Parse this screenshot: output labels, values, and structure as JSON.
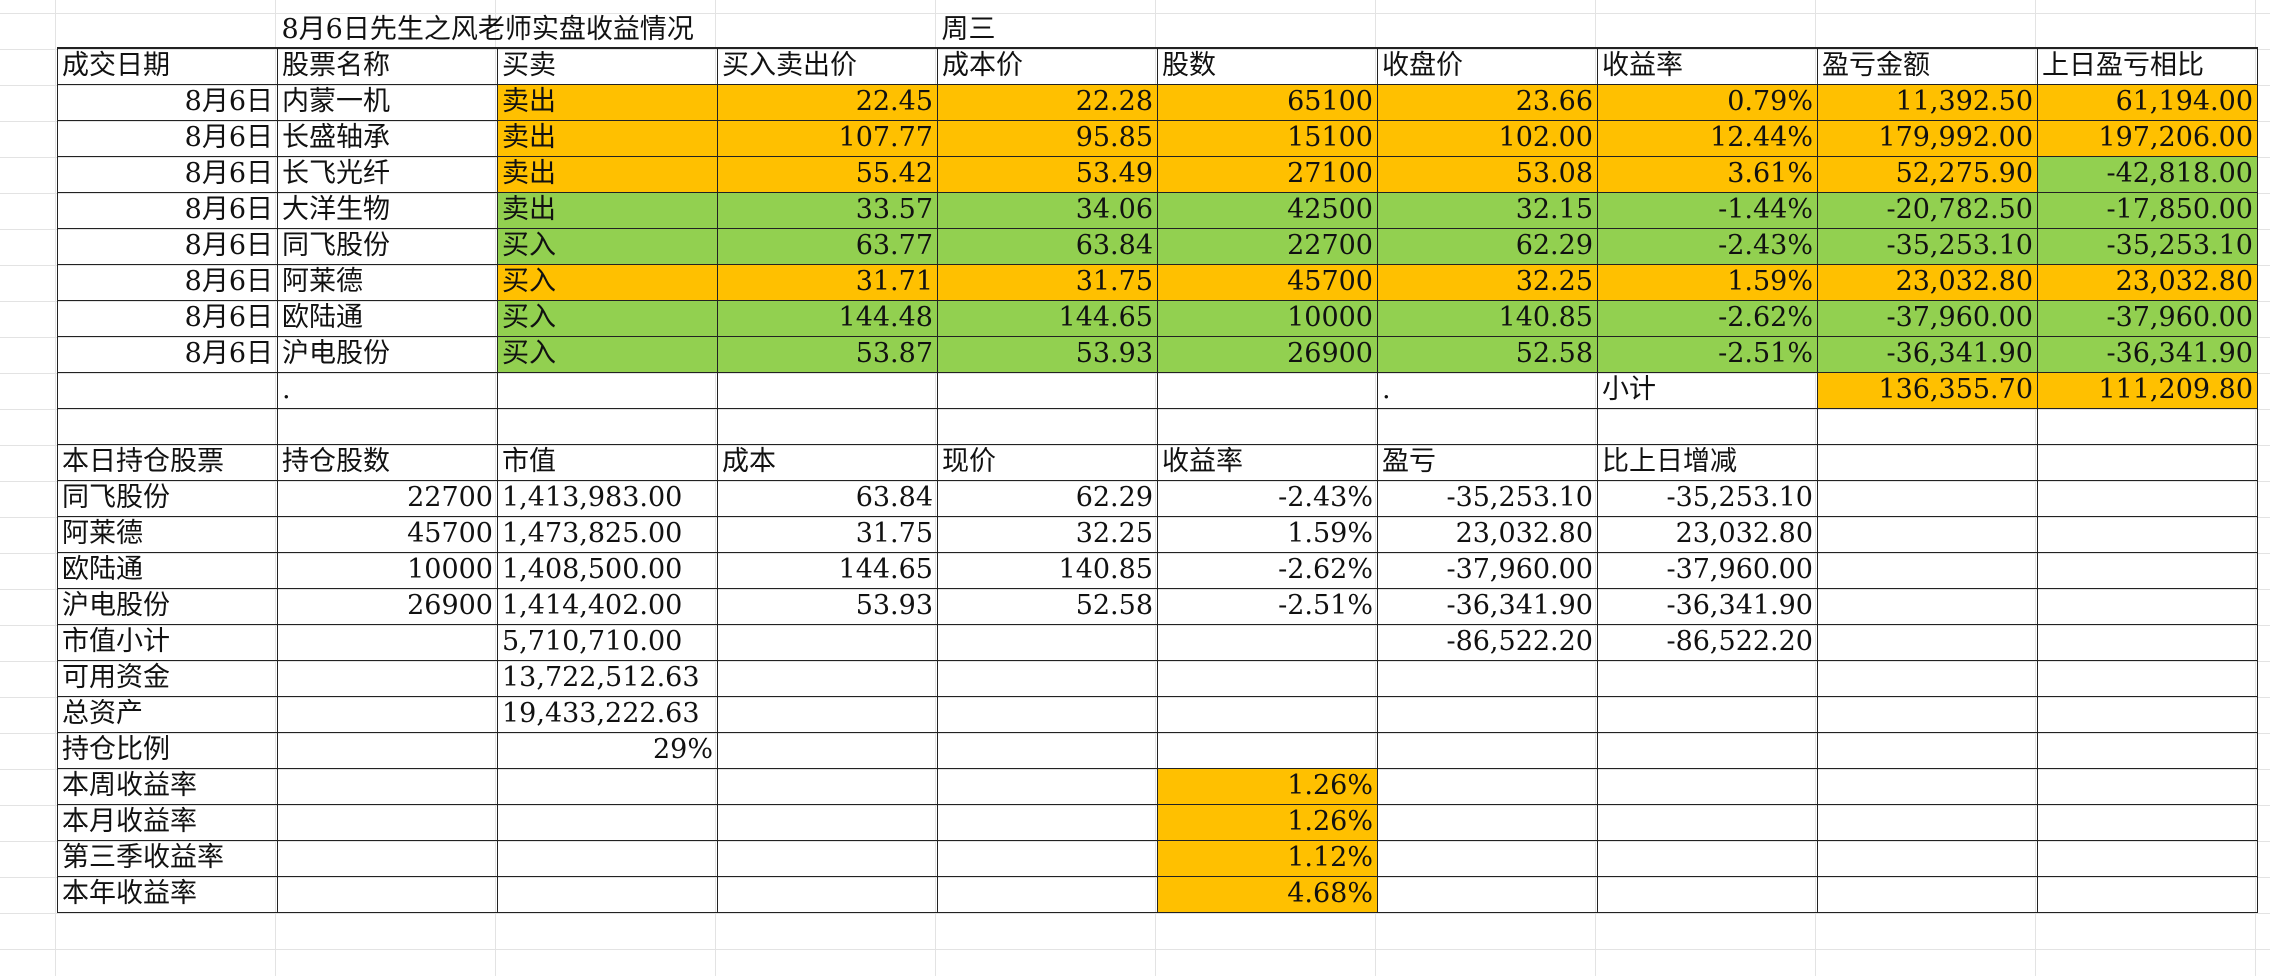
{
  "title": "8月6日先生之风老师实盘收益情况",
  "weekday": "周三",
  "trades": {
    "headers": [
      "成交日期",
      "股票名称",
      "买卖",
      "买入卖出价",
      "成本价",
      "股数",
      "收盘价",
      "收益率",
      "盈亏金额",
      "上日盈亏相比"
    ],
    "rows": [
      [
        "8月6日",
        "内蒙一机",
        "卖出",
        "22.45",
        "22.28",
        "65100",
        "23.66",
        "0.79%",
        "11,392.50",
        "61,194.00"
      ],
      [
        "8月6日",
        "长盛轴承",
        "卖出",
        "107.77",
        "95.85",
        "15100",
        "102.00",
        "12.44%",
        "179,992.00",
        "197,206.00"
      ],
      [
        "8月6日",
        "长飞光纤",
        "卖出",
        "55.42",
        "53.49",
        "27100",
        "53.08",
        "3.61%",
        "52,275.90",
        "-42,818.00"
      ],
      [
        "8月6日",
        "大洋生物",
        "卖出",
        "33.57",
        "34.06",
        "42500",
        "32.15",
        "-1.44%",
        "-20,782.50",
        "-17,850.00"
      ],
      [
        "8月6日",
        "同飞股份",
        "买入",
        "63.77",
        "63.84",
        "22700",
        "62.29",
        "-2.43%",
        "-35,253.10",
        "-35,253.10"
      ],
      [
        "8月6日",
        "阿莱德",
        "买入",
        "31.71",
        "31.75",
        "45700",
        "32.25",
        "1.59%",
        "23,032.80",
        "23,032.80"
      ],
      [
        "8月6日",
        "欧陆通",
        "买入",
        "144.48",
        "144.65",
        "10000",
        "140.85",
        "-2.62%",
        "-37,960.00",
        "-37,960.00"
      ],
      [
        "8月6日",
        "沪电股份",
        "买入",
        "53.87",
        "53.93",
        "26900",
        "52.58",
        "-2.51%",
        "-36,341.90",
        "-36,341.90"
      ]
    ],
    "subtotal": {
      "dot_b": ".",
      "dot_g": ".",
      "label": "小计",
      "pnl": "136,355.70",
      "vs_prev": "111,209.80"
    }
  },
  "holdings": {
    "headers": [
      "本日持仓股票",
      "持仓股数",
      "市值",
      "成本",
      "现价",
      "收益率",
      "盈亏",
      "比上日增减"
    ],
    "rows": [
      [
        "同飞股份",
        "22700",
        "1,413,983.00",
        "63.84",
        "62.29",
        "-2.43%",
        "-35,253.10",
        "-35,253.10"
      ],
      [
        "阿莱德",
        "45700",
        "1,473,825.00",
        "31.75",
        "32.25",
        "1.59%",
        "23,032.80",
        "23,032.80"
      ],
      [
        "欧陆通",
        "10000",
        "1,408,500.00",
        "144.65",
        "140.85",
        "-2.62%",
        "-37,960.00",
        "-37,960.00"
      ],
      [
        "沪电股份",
        "26900",
        "1,414,402.00",
        "53.93",
        "52.58",
        "-2.51%",
        "-36,341.90",
        "-36,341.90"
      ]
    ],
    "mv_subtotal_label": "市值小计",
    "mv_subtotal": "5,710,710.00",
    "pnl_subtotal": "-86,522.20",
    "diff_subtotal": "-86,522.20",
    "cash_label": "可用资金",
    "cash": "13,722,512.63",
    "total_label": "总资产",
    "total": "19,433,222.63",
    "ratio_label": "持仓比例",
    "ratio": "29%"
  },
  "returns": [
    {
      "label": "本周收益率",
      "value": "1.26%"
    },
    {
      "label": "本月收益率",
      "value": "1.26%"
    },
    {
      "label": "第三季收益率",
      "value": "1.12%"
    },
    {
      "label": "本年收益率",
      "value": "4.68%"
    }
  ],
  "colors": {
    "sell_highlight": "#ffc000",
    "buy_highlight": "#92d050",
    "gridline": "#e3e3e3",
    "border": "#222222"
  }
}
